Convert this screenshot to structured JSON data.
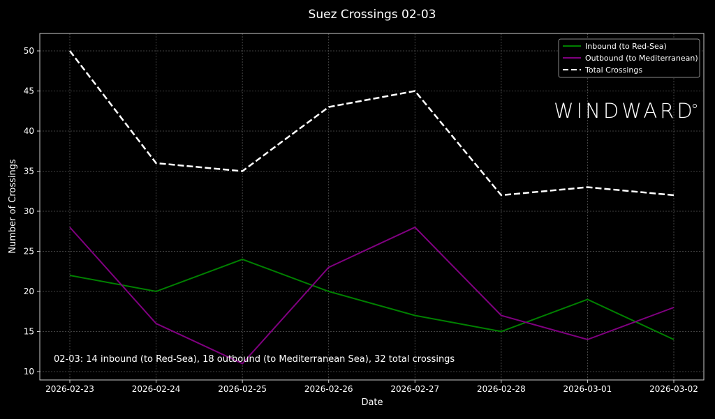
{
  "chart_data": {
    "type": "line",
    "title": "Suez Crossings 02-03",
    "xlabel": "Date",
    "ylabel": "Number of Crossings",
    "x": [
      "2026-02-23",
      "2026-02-24",
      "2026-02-25",
      "2026-02-26",
      "2026-02-27",
      "2026-02-28",
      "2026-03-01",
      "2026-03-02"
    ],
    "yticks": [
      10,
      15,
      20,
      25,
      30,
      35,
      40,
      45,
      50
    ],
    "ylim": [
      9,
      52.5
    ],
    "grid": true,
    "legend_position": "top-right",
    "series": [
      {
        "name": "Inbound (to Red-Sea)",
        "color": "#008000",
        "style": "solid",
        "values": [
          22,
          20,
          24,
          20,
          17,
          15,
          19,
          14
        ]
      },
      {
        "name": "Outbound (to Mediterranean)",
        "color": "#800080",
        "style": "solid",
        "values": [
          28,
          16,
          11,
          23,
          28,
          17,
          14,
          18
        ]
      },
      {
        "name": "Total Crossings",
        "color": "#ffffff",
        "style": "dashed",
        "values": [
          50,
          36,
          35,
          43,
          45,
          32,
          33,
          32
        ]
      }
    ],
    "annotation": "02-03: 14 inbound (to Red-Sea), 18 outbound (to Mediterranean Sea), 32 total crossings",
    "watermark": "WINDWARD"
  }
}
